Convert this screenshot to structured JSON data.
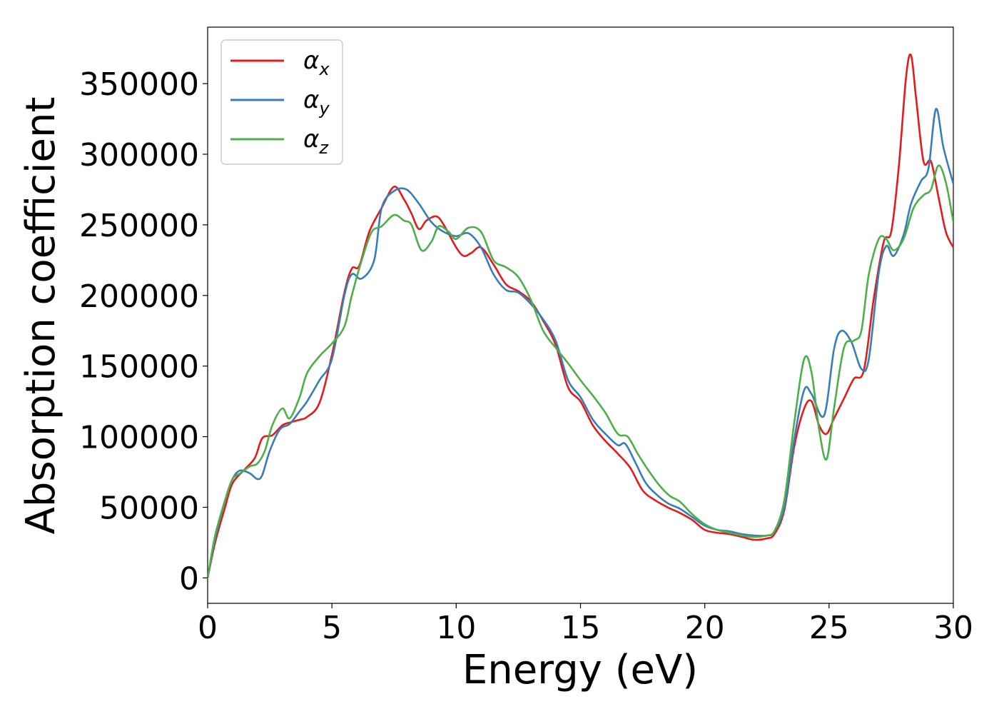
{
  "chart_data": {
    "type": "line",
    "xlabel": "Energy (eV)",
    "ylabel": "Absorption coefficient",
    "xlim": [
      0,
      30
    ],
    "ylim": [
      -18000,
      390000
    ],
    "xticks": [
      0,
      5,
      10,
      15,
      20,
      25,
      30
    ],
    "xtick_labels": [
      "0",
      "5",
      "10",
      "15",
      "20",
      "25",
      "30"
    ],
    "yticks": [
      0,
      50000,
      100000,
      150000,
      200000,
      250000,
      300000,
      350000
    ],
    "ytick_labels": [
      "0",
      "50000",
      "100000",
      "150000",
      "200000",
      "250000",
      "300000",
      "350000"
    ],
    "grid": false,
    "legend_position": "top-left",
    "series": [
      {
        "name": "α",
        "subscript": "x",
        "color": "#e41a1c",
        "x": [
          0,
          0.3,
          0.7,
          1.0,
          1.5,
          1.9,
          2.2,
          2.6,
          3.0,
          3.3,
          3.7,
          4.0,
          4.5,
          5.0,
          5.5,
          5.8,
          6.1,
          6.5,
          7.0,
          7.5,
          7.9,
          8.2,
          8.5,
          8.8,
          9.2,
          9.5,
          10.0,
          10.3,
          10.6,
          11.0,
          11.5,
          12.0,
          12.5,
          13.0,
          13.5,
          14.0,
          14.5,
          15.0,
          15.5,
          16.0,
          16.5,
          17.0,
          17.5,
          18.0,
          18.5,
          19.0,
          19.5,
          20.0,
          20.5,
          21.0,
          21.5,
          22.0,
          22.5,
          22.8,
          23.2,
          23.6,
          24.0,
          24.3,
          24.6,
          24.9,
          25.2,
          25.6,
          26.0,
          26.4,
          26.8,
          27.2,
          27.5,
          27.8,
          28.1,
          28.3,
          28.5,
          28.8,
          29.1,
          29.4,
          29.7,
          30.0
        ],
        "y": [
          0,
          25000,
          50000,
          67000,
          77000,
          85000,
          99000,
          101000,
          108000,
          110000,
          112000,
          114000,
          124000,
          158000,
          202000,
          219000,
          221000,
          245000,
          262000,
          277000,
          268000,
          258000,
          247000,
          253000,
          256000,
          250000,
          234000,
          228000,
          230000,
          234000,
          222000,
          208000,
          203000,
          196000,
          182000,
          165000,
          135000,
          125000,
          108000,
          97000,
          88000,
          78000,
          62000,
          55000,
          50000,
          46000,
          41000,
          34000,
          32000,
          31000,
          29000,
          27000,
          28000,
          31000,
          48000,
          93000,
          120000,
          125000,
          108000,
          102000,
          113000,
          127000,
          141000,
          147000,
          198000,
          238000,
          245000,
          290000,
          355000,
          370000,
          340000,
          295000,
          295000,
          270000,
          245000,
          234000
        ]
      },
      {
        "name": "α",
        "subscript": "y",
        "color": "#377eb8",
        "x": [
          0,
          0.3,
          0.7,
          1.0,
          1.3,
          1.7,
          2.0,
          2.2,
          2.5,
          2.9,
          3.3,
          3.7,
          4.0,
          4.5,
          5.0,
          5.5,
          5.8,
          6.2,
          6.7,
          7.0,
          7.5,
          8.0,
          8.5,
          9.0,
          9.5,
          10.0,
          10.5,
          11.0,
          11.5,
          12.0,
          12.5,
          13.0,
          13.5,
          14.0,
          14.5,
          15.0,
          15.5,
          16.0,
          16.5,
          16.8,
          17.2,
          17.6,
          18.0,
          18.5,
          19.0,
          19.5,
          20.0,
          20.5,
          21.0,
          21.5,
          22.0,
          22.5,
          22.8,
          23.2,
          23.6,
          24.0,
          24.3,
          24.8,
          25.2,
          25.5,
          25.9,
          26.3,
          26.6,
          27.0,
          27.3,
          27.6,
          28.0,
          28.3,
          28.7,
          29.0,
          29.3,
          29.6,
          30.0
        ],
        "y": [
          0,
          28000,
          55000,
          70000,
          76000,
          74000,
          70000,
          73000,
          90000,
          105000,
          109000,
          118000,
          125000,
          140000,
          155000,
          200000,
          215000,
          212000,
          225000,
          262000,
          274000,
          275000,
          265000,
          252000,
          245000,
          242000,
          244000,
          234000,
          215000,
          204000,
          202000,
          194000,
          183000,
          168000,
          140000,
          128000,
          112000,
          102000,
          94000,
          95000,
          82000,
          68000,
          60000,
          53000,
          49000,
          43000,
          37000,
          34000,
          33000,
          31000,
          30000,
          30000,
          33000,
          50000,
          98000,
          133000,
          130000,
          115000,
          162000,
          175000,
          167000,
          148000,
          155000,
          216000,
          235000,
          228000,
          243000,
          265000,
          281000,
          290000,
          332000,
          305000,
          279000
        ]
      },
      {
        "name": "α",
        "subscript": "z",
        "color": "#4daf4a",
        "x": [
          0,
          0.3,
          0.7,
          1.0,
          1.3,
          1.7,
          2.0,
          2.3,
          2.6,
          3.0,
          3.3,
          3.7,
          4.0,
          4.5,
          5.0,
          5.5,
          5.8,
          6.2,
          6.6,
          7.0,
          7.5,
          7.9,
          8.2,
          8.6,
          9.0,
          9.3,
          9.7,
          10.0,
          10.5,
          11.0,
          11.5,
          12.0,
          12.5,
          13.0,
          13.5,
          14.0,
          14.5,
          15.0,
          15.5,
          16.0,
          16.5,
          16.9,
          17.3,
          17.7,
          18.2,
          18.6,
          19.0,
          19.5,
          20.0,
          20.5,
          21.0,
          21.5,
          22.0,
          22.5,
          22.8,
          23.2,
          23.6,
          24.0,
          24.3,
          24.6,
          24.9,
          25.2,
          25.6,
          26.0,
          26.3,
          26.6,
          27.0,
          27.3,
          27.6,
          28.0,
          28.4,
          28.8,
          29.1,
          29.4,
          29.7,
          30.0
        ],
        "y": [
          0,
          30000,
          55000,
          70000,
          74000,
          79000,
          81000,
          90000,
          108000,
          120000,
          113000,
          128000,
          145000,
          157000,
          166000,
          178000,
          200000,
          225000,
          245000,
          249000,
          257000,
          253000,
          250000,
          232000,
          238000,
          249000,
          245000,
          240000,
          248000,
          245000,
          225000,
          220000,
          213000,
          197000,
          175000,
          163000,
          152000,
          140000,
          129000,
          117000,
          102000,
          100000,
          88000,
          77000,
          65000,
          58000,
          54000,
          45000,
          38000,
          34000,
          32000,
          30000,
          29000,
          30000,
          33000,
          55000,
          110000,
          155000,
          145000,
          105000,
          84000,
          120000,
          163000,
          168000,
          175000,
          215000,
          240000,
          240000,
          232000,
          240000,
          262000,
          271000,
          275000,
          292000,
          280000,
          252000
        ]
      }
    ]
  }
}
